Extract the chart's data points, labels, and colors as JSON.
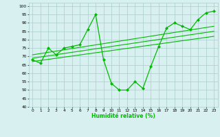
{
  "title": "",
  "xlabel": "Humidité relative (%)",
  "ylabel": "",
  "background_color": "#d8f0f0",
  "grid_color": "#aacccc",
  "line_color": "#00bb00",
  "xlim": [
    -0.5,
    23.5
  ],
  "ylim": [
    40,
    102
  ],
  "yticks": [
    40,
    45,
    50,
    55,
    60,
    65,
    70,
    75,
    80,
    85,
    90,
    95,
    100
  ],
  "xticks": [
    0,
    1,
    2,
    3,
    4,
    5,
    6,
    7,
    8,
    9,
    10,
    11,
    12,
    13,
    14,
    15,
    16,
    17,
    18,
    19,
    20,
    21,
    22,
    23
  ],
  "main_x": [
    0,
    1,
    2,
    3,
    4,
    5,
    6,
    7,
    8,
    9,
    10,
    11,
    12,
    13,
    14,
    15,
    16,
    17,
    18,
    19,
    20,
    21,
    22,
    23
  ],
  "main_y": [
    68,
    66,
    75,
    71,
    75,
    76,
    77,
    86,
    95,
    68,
    54,
    50,
    50,
    55,
    51,
    64,
    76,
    87,
    90,
    88,
    86,
    92,
    96,
    97
  ],
  "trend1_x": [
    0,
    23
  ],
  "trend1_y": [
    67,
    82
  ],
  "trend2_x": [
    0,
    23
  ],
  "trend2_y": [
    69,
    85
  ],
  "trend3_x": [
    0,
    23
  ],
  "trend3_y": [
    71,
    88
  ]
}
